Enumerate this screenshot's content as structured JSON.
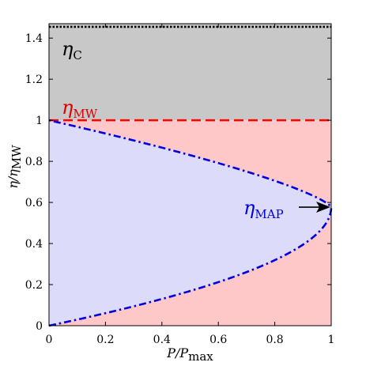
{
  "chart_data": {
    "type": "area",
    "xlabel_main": "P/P",
    "xlabel_sub": "max",
    "ylabel_main": "η/η",
    "ylabel_sub": "MW",
    "xlim": [
      0,
      1
    ],
    "ylim": [
      0,
      1.47
    ],
    "x_ticks": [
      "0",
      "0.2",
      "0.4",
      "0.6",
      "0.8",
      "1"
    ],
    "y_ticks": [
      "0",
      "0.2",
      "0.4",
      "0.6",
      "0.8",
      "1",
      "1.2",
      "1.4"
    ],
    "eta_C": 1.455,
    "eta_MW": 1.0,
    "eta_MAP_at_max": 0.577,
    "map_curve": {
      "y": [
        0,
        0.05,
        0.1,
        0.15,
        0.2,
        0.25,
        0.3,
        0.35,
        0.4,
        0.45,
        0.5,
        0.55,
        0.577,
        0.6,
        0.65,
        0.7,
        0.75,
        0.8,
        0.85,
        0.9,
        0.95,
        1.0
      ],
      "x": [
        0,
        0.1425,
        0.27,
        0.3825,
        0.48,
        0.5625,
        0.63,
        0.6825,
        0.72,
        0.7425,
        0.75,
        0.7425,
        1.0,
        0.7425,
        0.7425,
        0.72,
        0.6825,
        0.63,
        0.5625,
        0.48,
        0.2475,
        0
      ]
    },
    "annotations": {
      "eta_c_label": "η",
      "eta_c_sub": "C",
      "eta_mw_label": "η",
      "eta_mw_sub": "MW",
      "eta_map_label": "η",
      "eta_map_sub": "MAP"
    },
    "colors": {
      "gray_band": "#c8c8c8",
      "red_band": "#ffc8c8",
      "blue_region": "#dcdcfa",
      "eta_c_line": "#000000",
      "eta_mw_line": "#ff0000",
      "map_curve": "#0000dd",
      "eta_mw_text": "#dd0000",
      "eta_map_text": "#0000dd",
      "eta_c_text": "#000000"
    }
  }
}
